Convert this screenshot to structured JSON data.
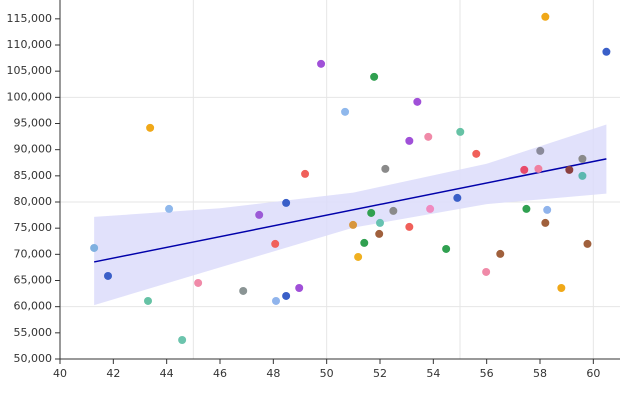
{
  "chart_data": {
    "type": "scatter",
    "x": [
      41.28,
      41.8,
      43.3,
      43.38,
      44.09,
      44.58,
      45.18,
      46.87,
      47.47,
      48.07,
      48.1,
      48.48,
      48.48,
      48.97,
      49.19,
      49.79,
      50.69,
      50.99,
      51.18,
      51.41,
      51.67,
      51.78,
      51.97,
      52.0,
      52.2,
      52.5,
      53.1,
      53.1,
      53.4,
      53.81,
      53.88,
      54.48,
      54.9,
      55.01,
      55.61,
      55.98,
      56.51,
      57.41,
      57.49,
      57.94,
      58.01,
      58.2,
      58.2,
      58.27,
      58.8,
      59.1,
      59.59,
      59.59,
      59.78,
      60.49
    ],
    "values": [
      71220,
      65870,
      61090,
      94170,
      78680,
      53630,
      64530,
      63000,
      77530,
      71990,
      61090,
      79830,
      62050,
      63570,
      85370,
      106400,
      97230,
      75620,
      69500,
      72180,
      77910,
      103920,
      73900,
      76000,
      86330,
      78300,
      75240,
      91680,
      99140,
      92450,
      78680,
      71030,
      80780,
      93400,
      89200,
      66630,
      70080,
      86140,
      78680,
      86330,
      89770,
      76000,
      115390,
      78490,
      63570,
      86140,
      88240,
      84990,
      71990,
      108700
    ],
    "colors": [
      "#7fb0e0",
      "#3a5fc8",
      "#66c2a5",
      "#f0a818",
      "#8fb8ec",
      "#6cc4ad",
      "#f08aa8",
      "#8a9494",
      "#9b5ad6",
      "#f0605a",
      "#90b4ec",
      "#3a5fc8",
      "#3a5fc8",
      "#a050d8",
      "#f0605a",
      "#a050d8",
      "#8fb8ec",
      "#d8963c",
      "#f0b020",
      "#30a050",
      "#30a050",
      "#30a050",
      "#a0603c",
      "#66c2b0",
      "#8a8a8a",
      "#8a8a8a",
      "#f0605a",
      "#a050d8",
      "#a050d8",
      "#f08aa8",
      "#f08ac0",
      "#30a050",
      "#3a5fc8",
      "#66c2a5",
      "#f0605a",
      "#f08aa8",
      "#a0603c",
      "#e84a6a",
      "#30a050",
      "#f080a0",
      "#8a8a9a",
      "#a0603c",
      "#f0a818",
      "#90b4ec",
      "#f0a818",
      "#8c4040",
      "#8a8a8a",
      "#5cb8b0",
      "#a0603c",
      "#3a5fc8"
    ],
    "fit": {
      "x": [
        41.28,
        60.49
      ],
      "y": [
        68546,
        88240
      ],
      "color": "#0000aa"
    },
    "band": {
      "x": [
        41.28,
        46,
        51,
        56,
        60.49
      ],
      "upper": [
        77150,
        78800,
        81800,
        87300,
        94800
      ],
      "lower": [
        60300,
        67500,
        75100,
        79600,
        81600
      ],
      "color": "#dcdcfa"
    },
    "xlim": [
      40,
      61
    ],
    "ylim": [
      50000,
      118600
    ],
    "xticks": [
      40,
      42,
      44,
      46,
      48,
      50,
      52,
      54,
      56,
      58,
      60
    ],
    "yticks": [
      {
        "value": 50000,
        "label": "50,000"
      },
      {
        "value": 55000,
        "label": "55,000"
      },
      {
        "value": 60000,
        "label": "60,000"
      },
      {
        "value": 65000,
        "label": "65,000"
      },
      {
        "value": 70000,
        "label": "70,000"
      },
      {
        "value": 75000,
        "label": "75,000"
      },
      {
        "value": 80000,
        "label": "80,000"
      },
      {
        "value": 85000,
        "label": "85,000"
      },
      {
        "value": 90000,
        "label": "90,000"
      },
      {
        "value": 95000,
        "label": "95,000"
      },
      {
        "value": 100000,
        "label": "100,000"
      },
      {
        "value": 105000,
        "label": "105,000"
      },
      {
        "value": 110000,
        "label": "110,000"
      },
      {
        "value": 115000,
        "label": "115,000"
      }
    ],
    "xgrid": [
      45,
      50,
      55,
      60
    ],
    "ygrid": [
      60000,
      80000,
      100000
    ],
    "grid": true
  }
}
